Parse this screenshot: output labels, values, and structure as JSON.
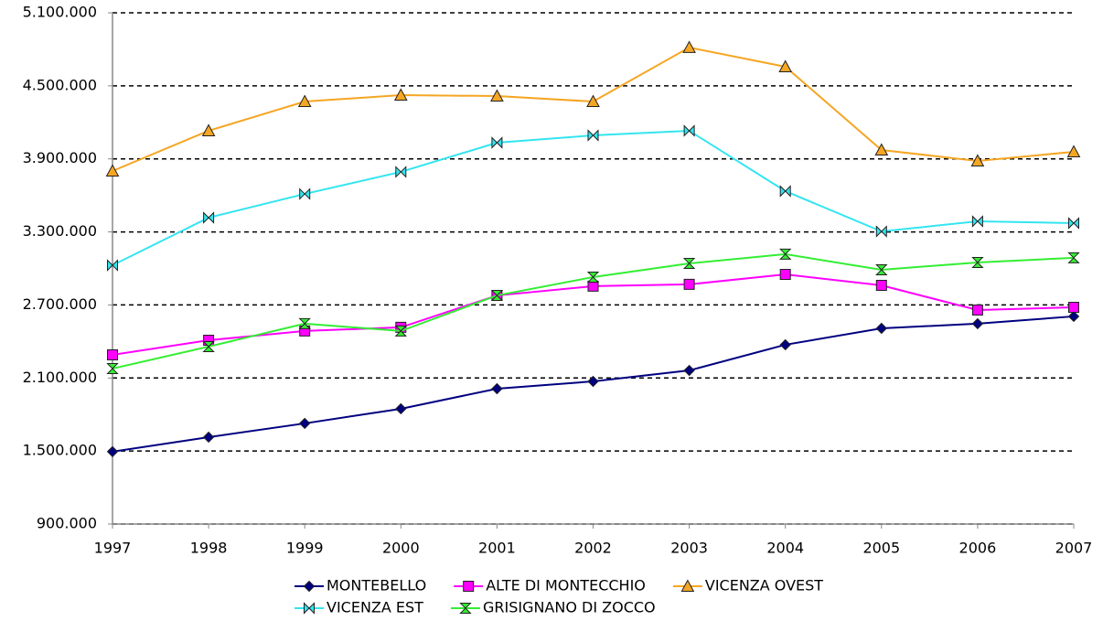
{
  "chart_data": {
    "type": "line",
    "categories": [
      "1997",
      "1998",
      "1999",
      "2000",
      "2001",
      "2002",
      "2003",
      "2004",
      "2005",
      "2006",
      "2007"
    ],
    "series": [
      {
        "name": "MONTEBELLO",
        "color": "#000080",
        "marker": "diamond",
        "values": [
          1495000,
          1614000,
          1727000,
          1847000,
          2012000,
          2072000,
          2162000,
          2373000,
          2508000,
          2546000,
          2606000
        ]
      },
      {
        "name": "ALTE DI MONTECCHIO",
        "color": "#ff00ff",
        "marker": "square",
        "values": [
          2290000,
          2410000,
          2486000,
          2516000,
          2778000,
          2854000,
          2869000,
          2951000,
          2861000,
          2658000,
          2681000
        ]
      },
      {
        "name": "VICENZA OVEST",
        "color": "#f5a623",
        "marker": "triangle",
        "values": [
          3800000,
          4131000,
          4371000,
          4424000,
          4416000,
          4371000,
          4815000,
          4657000,
          3973000,
          3883000,
          3958000
        ]
      },
      {
        "name": "VICENZA EST",
        "color": "#33e5f0",
        "marker": "bowtie",
        "values": [
          3026000,
          3417000,
          3612000,
          3793000,
          4033000,
          4093000,
          4131000,
          3635000,
          3304000,
          3387000,
          3372000
        ]
      },
      {
        "name": "GRISIGNANO DI ZOCCO",
        "color": "#33ee33",
        "marker": "hourglass",
        "values": [
          2177000,
          2358000,
          2546000,
          2486000,
          2778000,
          2929000,
          3041000,
          3117000,
          2989000,
          3049000,
          3087000
        ]
      }
    ],
    "ylim": [
      900000,
      5100000
    ],
    "yticks": [
      {
        "value": 900000,
        "label": "900.000"
      },
      {
        "value": 1500000,
        "label": "1.500.000"
      },
      {
        "value": 2100000,
        "label": "2.100.000"
      },
      {
        "value": 2700000,
        "label": "2.700.000"
      },
      {
        "value": 3300000,
        "label": "3.300.000"
      },
      {
        "value": 3900000,
        "label": "3.900.000"
      },
      {
        "value": 4500000,
        "label": "4.500.000"
      },
      {
        "value": 5100000,
        "label": "5.100.000"
      }
    ],
    "grid": true,
    "legend": "bottom"
  }
}
